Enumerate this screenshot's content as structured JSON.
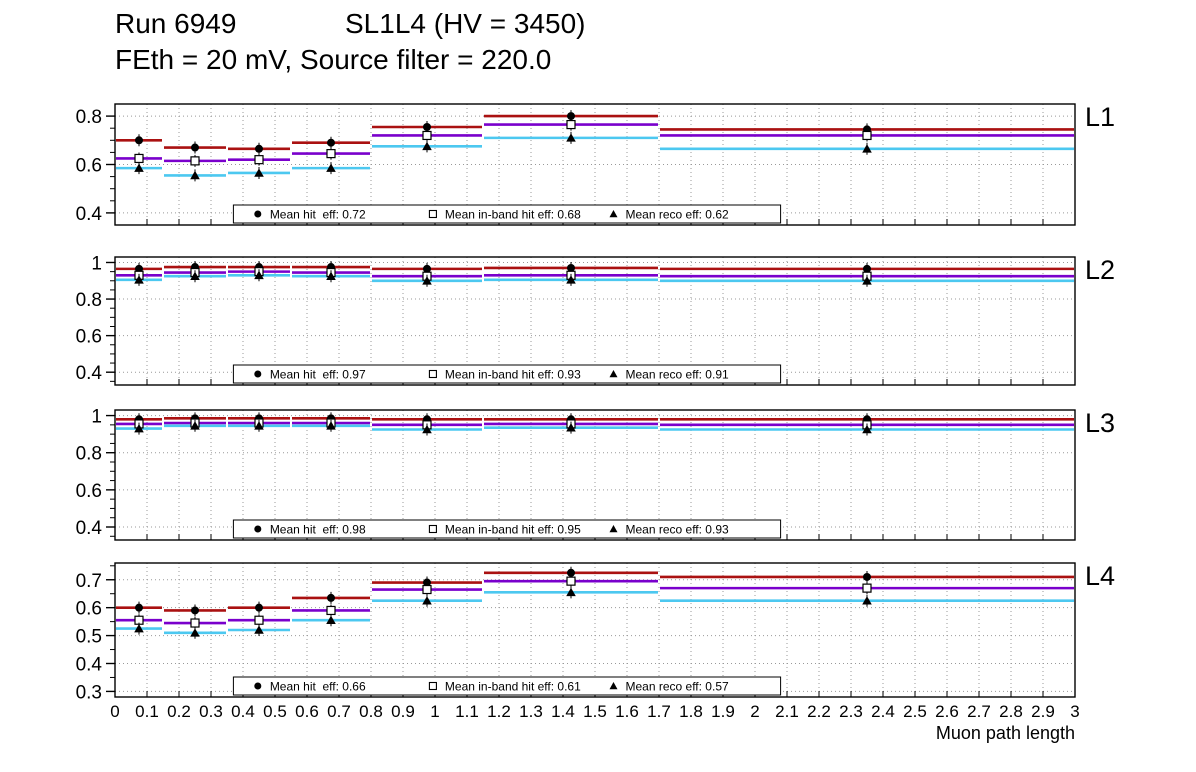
{
  "header": {
    "title_left": "Run 6949",
    "title_right": "SL1L4 (HV = 3450)",
    "subtitle": "FEth = 20 mV, Source filter = 220.0"
  },
  "chart_data": {
    "type": "line",
    "xlabel": "Muon path length",
    "xlim": [
      0,
      3
    ],
    "x_tick_step": 0.1,
    "grid": true,
    "bin_edges": [
      0,
      0.15,
      0.35,
      0.55,
      0.8,
      1.15,
      1.7,
      3.0
    ],
    "series_defs": [
      {
        "key": "hit",
        "name": "Mean hit eff",
        "color": "#aa1111",
        "marker": "filled-circle"
      },
      {
        "key": "inband",
        "name": "Mean in-band hit eff",
        "color": "#7a00cc",
        "marker": "open-square"
      },
      {
        "key": "reco",
        "name": "Mean reco eff",
        "color": "#4cc8f0",
        "marker": "filled-triangle"
      }
    ],
    "panels": [
      {
        "label": "L1",
        "ylim": [
          0.35,
          0.85
        ],
        "yticks": [
          0.4,
          0.6,
          0.8
        ],
        "series": {
          "hit": [
            0.7,
            0.67,
            0.665,
            0.69,
            0.755,
            0.8,
            0.745
          ],
          "inband": [
            0.625,
            0.615,
            0.62,
            0.645,
            0.72,
            0.765,
            0.72
          ],
          "reco": [
            0.585,
            0.555,
            0.565,
            0.585,
            0.675,
            0.71,
            0.665
          ]
        },
        "legend": [
          "Mean hit  eff: 0.72",
          "Mean in-band hit eff: 0.68",
          "Mean reco eff: 0.62"
        ]
      },
      {
        "label": "L2",
        "ylim": [
          0.33,
          1.03
        ],
        "yticks": [
          0.4,
          0.6,
          0.8,
          1
        ],
        "series": {
          "hit": [
            0.965,
            0.975,
            0.975,
            0.975,
            0.965,
            0.97,
            0.965
          ],
          "inband": [
            0.93,
            0.945,
            0.95,
            0.945,
            0.925,
            0.93,
            0.925
          ],
          "reco": [
            0.905,
            0.925,
            0.93,
            0.925,
            0.9,
            0.905,
            0.9
          ]
        },
        "legend": [
          "Mean hit  eff: 0.97",
          "Mean in-band hit eff: 0.93",
          "Mean reco eff: 0.91"
        ]
      },
      {
        "label": "L3",
        "ylim": [
          0.33,
          1.03
        ],
        "yticks": [
          0.4,
          0.6,
          0.8,
          1
        ],
        "series": {
          "hit": [
            0.98,
            0.985,
            0.985,
            0.985,
            0.98,
            0.98,
            0.98
          ],
          "inband": [
            0.955,
            0.96,
            0.96,
            0.96,
            0.95,
            0.955,
            0.95
          ],
          "reco": [
            0.93,
            0.945,
            0.945,
            0.945,
            0.925,
            0.935,
            0.925
          ]
        },
        "legend": [
          "Mean hit  eff: 0.98",
          "Mean in-band hit eff: 0.95",
          "Mean reco eff: 0.93"
        ]
      },
      {
        "label": "L4",
        "ylim": [
          0.28,
          0.76
        ],
        "yticks": [
          0.3,
          0.4,
          0.5,
          0.6,
          0.7
        ],
        "series": {
          "hit": [
            0.6,
            0.59,
            0.6,
            0.635,
            0.69,
            0.725,
            0.71
          ],
          "inband": [
            0.555,
            0.545,
            0.555,
            0.59,
            0.665,
            0.695,
            0.67
          ],
          "reco": [
            0.525,
            0.51,
            0.52,
            0.555,
            0.625,
            0.655,
            0.625
          ]
        },
        "legend": [
          "Mean hit  eff: 0.66",
          "Mean in-band hit eff: 0.61",
          "Mean reco eff: 0.57"
        ]
      }
    ]
  }
}
